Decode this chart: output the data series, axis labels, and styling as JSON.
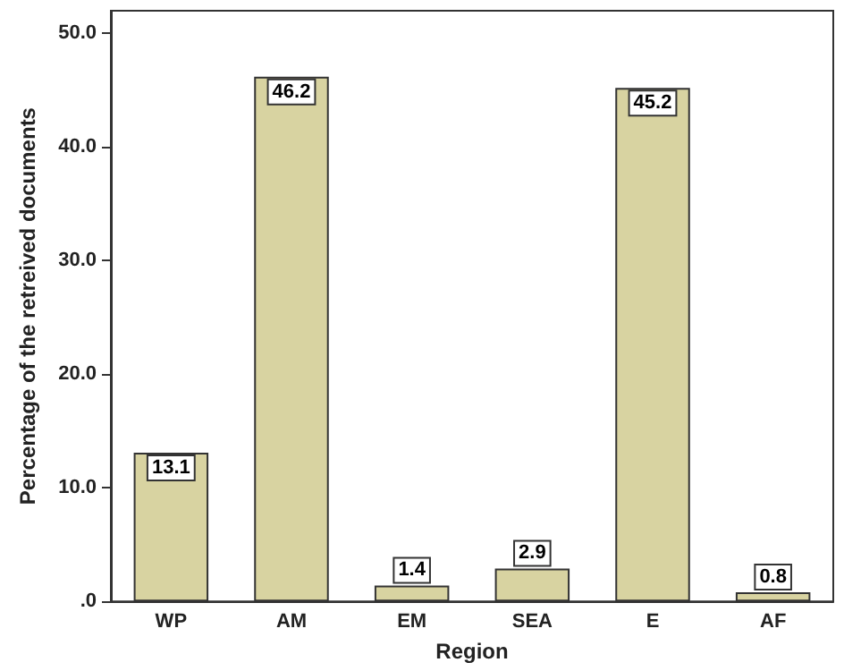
{
  "chart_data": {
    "type": "bar",
    "xlabel": "Region",
    "ylabel": "Percentage of the retreived documents",
    "categories": [
      "WP",
      "AM",
      "EM",
      "SEA",
      "E",
      "AF"
    ],
    "values": [
      13.1,
      46.2,
      1.4,
      2.9,
      45.2,
      0.8
    ],
    "color": "#d8d3a1",
    "ylim": [
      0,
      52
    ],
    "yticks": [
      {
        "value": 0,
        "label": ".0"
      },
      {
        "value": 10,
        "label": "10.0"
      },
      {
        "value": 20,
        "label": "20.0"
      },
      {
        "value": 30,
        "label": "30.0"
      },
      {
        "value": 40,
        "label": "40.0"
      },
      {
        "value": 50,
        "label": "50.0"
      }
    ],
    "data_labels": true,
    "grid": false
  }
}
